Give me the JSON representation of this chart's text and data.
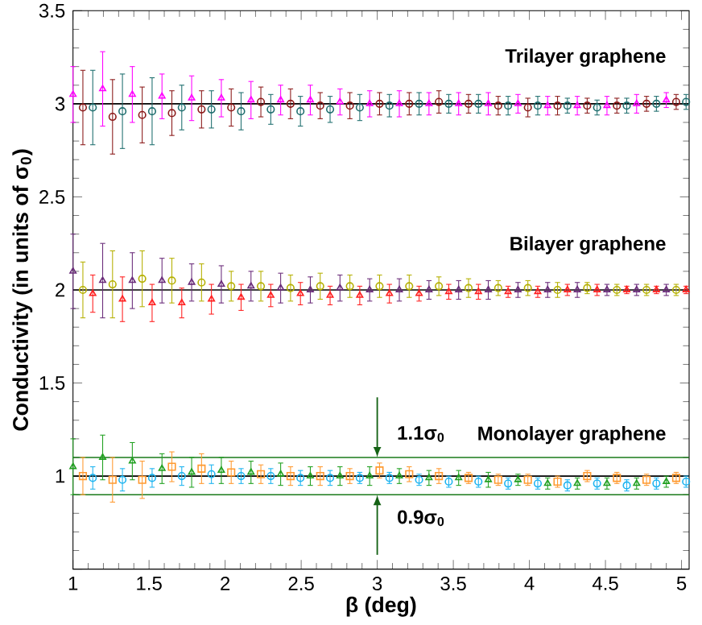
{
  "chart_data": {
    "type": "scatter",
    "xlabel": "β (deg)",
    "ylabel": "Conductivity (in units of σ$_{0}$)",
    "x": [
      1.0,
      1.195,
      1.39,
      1.585,
      1.78,
      1.975,
      2.17,
      2.365,
      2.56,
      2.755,
      2.95,
      3.145,
      3.34,
      3.535,
      3.73,
      3.925,
      4.12,
      4.315,
      4.51,
      4.705,
      4.9
    ],
    "series": [
      {
        "color": "#ff00ff",
        "marker": "triangle",
        "values": [
          3.05,
          3.08,
          3.05,
          3.04,
          3.03,
          3.03,
          3.02,
          3.02,
          3.02,
          3.01,
          3.0,
          3.0,
          3.0,
          3.0,
          3.0,
          3.0,
          2.99,
          2.99,
          2.99,
          3.0,
          3.02
        ],
        "errors": [
          0.15,
          0.2,
          0.15,
          0.12,
          0.12,
          0.1,
          0.1,
          0.08,
          0.08,
          0.07,
          0.07,
          0.07,
          0.06,
          0.06,
          0.06,
          0.05,
          0.05,
          0.05,
          0.05,
          0.05,
          0.04
        ]
      },
      {
        "color": "#8b1a1a",
        "marker": "circle",
        "x": [
          1.065,
          1.26,
          1.455,
          1.65,
          1.845,
          2.04,
          2.235,
          2.43,
          2.625,
          2.82,
          3.015,
          3.21,
          3.405,
          3.6,
          3.795,
          3.99,
          4.185,
          4.38,
          4.575,
          4.77,
          4.965
        ],
        "values": [
          2.98,
          2.93,
          2.94,
          2.95,
          2.97,
          2.98,
          3.01,
          3.0,
          2.99,
          2.99,
          3.0,
          3.0,
          3.01,
          3.0,
          2.99,
          2.98,
          2.99,
          2.99,
          2.99,
          3.0,
          3.01
        ],
        "errors": [
          0.2,
          0.2,
          0.15,
          0.12,
          0.1,
          0.1,
          0.08,
          0.08,
          0.07,
          0.07,
          0.06,
          0.06,
          0.06,
          0.05,
          0.05,
          0.05,
          0.05,
          0.04,
          0.04,
          0.04,
          0.04
        ]
      },
      {
        "color": "#1f6f6f",
        "marker": "circle",
        "x": [
          1.13,
          1.325,
          1.52,
          1.715,
          1.91,
          2.105,
          2.3,
          2.495,
          2.69,
          2.885,
          3.08,
          3.275,
          3.47,
          3.665,
          3.86,
          4.055,
          4.25,
          4.445,
          4.64,
          4.835,
          5.03
        ],
        "values": [
          2.98,
          2.96,
          2.96,
          2.98,
          2.97,
          2.96,
          2.97,
          2.96,
          2.97,
          2.98,
          2.99,
          3.0,
          3.0,
          3.0,
          2.99,
          2.99,
          2.99,
          2.98,
          2.99,
          3.0,
          3.01
        ],
        "errors": [
          0.2,
          0.2,
          0.18,
          0.12,
          0.1,
          0.1,
          0.08,
          0.08,
          0.07,
          0.07,
          0.06,
          0.06,
          0.05,
          0.05,
          0.05,
          0.05,
          0.04,
          0.04,
          0.04,
          0.04,
          0.04
        ]
      },
      {
        "color": "#6a2c7a",
        "marker": "triangle",
        "values": [
          2.1,
          2.05,
          2.05,
          2.05,
          2.04,
          2.03,
          2.02,
          2.01,
          2.0,
          2.01,
          2.0,
          2.0,
          2.0,
          2.0,
          2.0,
          2.0,
          2.0,
          2.0,
          2.0,
          2.0,
          2.0
        ],
        "errors": [
          0.2,
          0.2,
          0.15,
          0.12,
          0.1,
          0.1,
          0.08,
          0.08,
          0.07,
          0.07,
          0.06,
          0.06,
          0.05,
          0.05,
          0.05,
          0.04,
          0.04,
          0.04,
          0.03,
          0.03,
          0.03
        ]
      },
      {
        "color": "#b5b000",
        "marker": "circle",
        "x": [
          1.065,
          1.26,
          1.455,
          1.65,
          1.845,
          2.04,
          2.235,
          2.43,
          2.625,
          2.82,
          3.015,
          3.21,
          3.405,
          3.6,
          3.795,
          3.99,
          4.185,
          4.38,
          4.575,
          4.77,
          4.965
        ],
        "values": [
          2.0,
          2.03,
          2.06,
          2.05,
          2.04,
          2.02,
          2.02,
          2.01,
          2.02,
          2.02,
          2.02,
          2.02,
          2.02,
          2.01,
          2.01,
          2.01,
          2.0,
          2.01,
          2.0,
          2.0,
          2.0
        ],
        "errors": [
          0.15,
          0.18,
          0.15,
          0.12,
          0.1,
          0.08,
          0.08,
          0.07,
          0.07,
          0.06,
          0.06,
          0.06,
          0.05,
          0.05,
          0.04,
          0.04,
          0.04,
          0.03,
          0.03,
          0.03,
          0.03
        ]
      },
      {
        "color": "#ff2020",
        "marker": "triangle",
        "x": [
          1.13,
          1.325,
          1.52,
          1.715,
          1.91,
          2.105,
          2.3,
          2.495,
          2.69,
          2.885,
          3.08,
          3.275,
          3.47,
          3.665,
          3.86,
          4.055,
          4.25,
          4.445,
          4.64,
          4.835,
          5.03
        ],
        "values": [
          1.98,
          1.95,
          1.93,
          1.93,
          1.95,
          1.96,
          1.97,
          1.98,
          1.97,
          1.97,
          1.98,
          1.98,
          1.99,
          1.99,
          1.99,
          1.99,
          2.0,
          2.0,
          2.0,
          2.0,
          2.0
        ],
        "errors": [
          0.1,
          0.12,
          0.1,
          0.08,
          0.08,
          0.07,
          0.06,
          0.06,
          0.05,
          0.05,
          0.05,
          0.04,
          0.04,
          0.04,
          0.03,
          0.03,
          0.03,
          0.03,
          0.02,
          0.02,
          0.02
        ]
      },
      {
        "color": "#20a020",
        "marker": "triangle",
        "values": [
          1.05,
          1.1,
          1.08,
          1.04,
          1.02,
          1.03,
          1.02,
          1.01,
          1.0,
          1.0,
          1.0,
          1.0,
          0.99,
          0.99,
          0.98,
          0.98,
          0.96,
          0.96,
          0.96,
          0.96,
          0.97
        ],
        "errors": [
          0.15,
          0.12,
          0.1,
          0.08,
          0.08,
          0.07,
          0.06,
          0.06,
          0.05,
          0.05,
          0.05,
          0.04,
          0.04,
          0.04,
          0.04,
          0.03,
          0.03,
          0.03,
          0.03,
          0.03,
          0.03
        ]
      },
      {
        "color": "#ff9a30",
        "marker": "square",
        "x": [
          1.065,
          1.26,
          1.455,
          1.65,
          1.845,
          2.04,
          2.235,
          2.43,
          2.625,
          2.82,
          3.015,
          3.21,
          3.405,
          3.6,
          3.795,
          3.99,
          4.185,
          4.38,
          4.575,
          4.77,
          4.965
        ],
        "values": [
          1.0,
          0.98,
          0.98,
          1.05,
          1.04,
          1.02,
          1.01,
          1.0,
          1.0,
          1.0,
          1.03,
          1.01,
          1.0,
          0.99,
          0.98,
          0.98,
          0.97,
          1.0,
          0.99,
          0.98,
          0.99
        ],
        "errors": [
          0.1,
          0.12,
          0.1,
          0.08,
          0.08,
          0.06,
          0.05,
          0.05,
          0.05,
          0.04,
          0.04,
          0.04,
          0.04,
          0.03,
          0.03,
          0.03,
          0.03,
          0.03,
          0.03,
          0.03,
          0.03
        ]
      },
      {
        "color": "#1eb4f0",
        "marker": "circle",
        "x": [
          1.13,
          1.325,
          1.52,
          1.715,
          1.91,
          2.105,
          2.3,
          2.495,
          2.69,
          2.885,
          3.08,
          3.275,
          3.47,
          3.665,
          3.86,
          4.055,
          4.25,
          4.445,
          4.64,
          4.835,
          5.03
        ],
        "values": [
          0.99,
          0.98,
          0.99,
          1.0,
          1.01,
          1.0,
          1.0,
          0.99,
          0.99,
          0.99,
          0.99,
          0.98,
          0.97,
          0.97,
          0.96,
          0.96,
          0.95,
          0.96,
          0.95,
          0.96,
          0.97
        ],
        "errors": [
          0.06,
          0.06,
          0.05,
          0.05,
          0.05,
          0.04,
          0.04,
          0.04,
          0.04,
          0.03,
          0.03,
          0.03,
          0.03,
          0.03,
          0.03,
          0.03,
          0.03,
          0.03,
          0.03,
          0.03,
          0.03
        ]
      }
    ],
    "xlim": [
      1,
      5.05
    ],
    "xticks": [
      1,
      1.5,
      2,
      2.5,
      3,
      3.5,
      4,
      4.5,
      5
    ],
    "ylim": [
      0.5,
      3.5
    ],
    "yticks": [
      {
        "value": 0.5,
        "label": null
      },
      1,
      1.5,
      2,
      2.5,
      3,
      3.5
    ],
    "ref_lines": [
      {
        "axis": "y",
        "value": 3,
        "color": "#000000"
      },
      {
        "axis": "y",
        "value": 2,
        "color": "#000000"
      },
      {
        "axis": "y",
        "value": 1,
        "color": "#000000"
      },
      {
        "axis": "y",
        "value": 1.1,
        "color": "#1a7a1a"
      },
      {
        "axis": "y",
        "value": 0.9,
        "color": "#1a7a1a"
      }
    ],
    "annotations": [
      "Trilayer graphene",
      "Bilayer graphene",
      "Monolayer graphene",
      {
        "text": "1.1σ$_{0}$",
        "x": 3,
        "y": 1.1
      },
      {
        "text": "0.9σ$_{0}$",
        "x": 3,
        "y": 0.9
      }
    ],
    "grid": false
  }
}
